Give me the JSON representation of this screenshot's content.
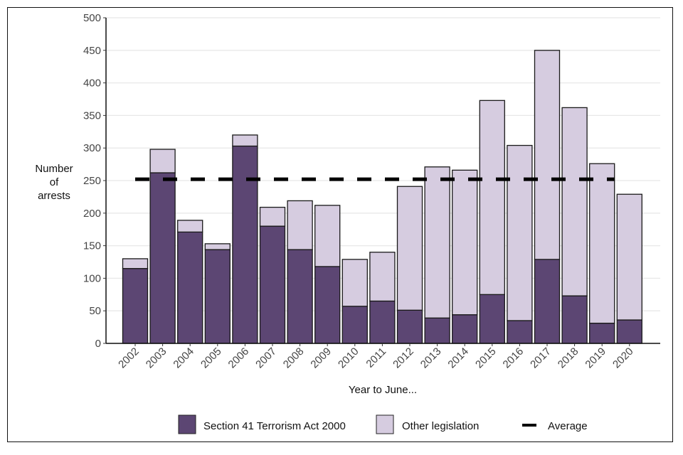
{
  "chart_data": {
    "type": "bar",
    "stacked": true,
    "title": "",
    "xlabel": "Year to June...",
    "ylabel": "Number of arrests",
    "ylim": [
      0,
      500
    ],
    "yticks": [
      0,
      50,
      100,
      150,
      200,
      250,
      300,
      350,
      400,
      450,
      500
    ],
    "grid": "horizontal",
    "legend_position": "bottom",
    "categories": [
      "2002",
      "2003",
      "2004",
      "2005",
      "2006",
      "2007",
      "2008",
      "2009",
      "2010",
      "2011",
      "2012",
      "2013",
      "2014",
      "2015",
      "2016",
      "2017",
      "2018",
      "2019",
      "2020"
    ],
    "series": [
      {
        "name": "Section 41 Terrorism Act 2000",
        "color": "#5c4673",
        "values": [
          115,
          262,
          171,
          144,
          303,
          180,
          144,
          118,
          57,
          65,
          51,
          39,
          44,
          75,
          35,
          129,
          73,
          31,
          36
        ]
      },
      {
        "name": "Other legislation",
        "color": "#d6cce0",
        "values": [
          15,
          36,
          18,
          9,
          17,
          29,
          75,
          94,
          72,
          75,
          190,
          232,
          222,
          298,
          269,
          321,
          289,
          245,
          193
        ]
      }
    ],
    "totals": [
      130,
      298,
      189,
      153,
      320,
      209,
      219,
      212,
      129,
      140,
      241,
      271,
      266,
      373,
      304,
      450,
      362,
      276,
      229
    ],
    "average": {
      "name": "Average",
      "value": 252,
      "style": "dashed",
      "color": "#000000"
    }
  },
  "labels": {
    "ylabel_lines": [
      "Number",
      "of",
      "arrests"
    ],
    "xlabel": "Year to June...",
    "legend": [
      "Section 41 Terrorism Act 2000",
      "Other legislation",
      "Average"
    ]
  }
}
